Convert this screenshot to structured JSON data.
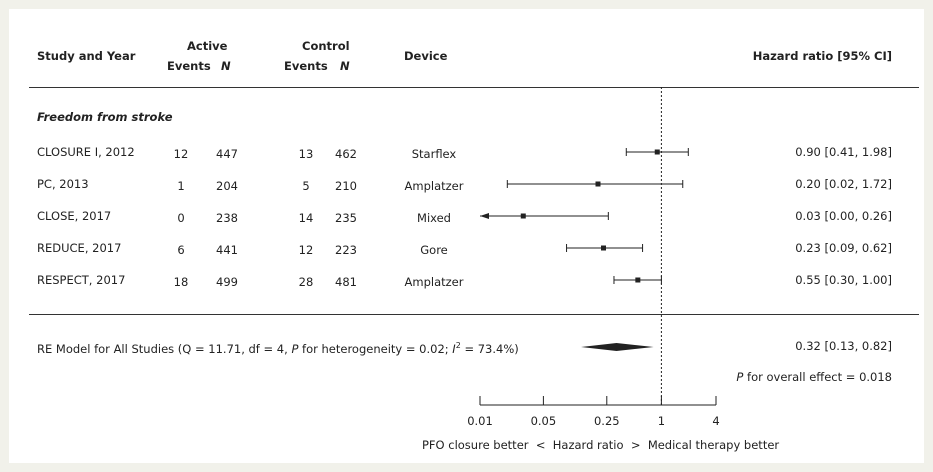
{
  "colors": {
    "page_bg": "#f1f1ea",
    "panel_bg": "#ffffff",
    "ink": "#222222"
  },
  "header": {
    "study_year": "Study and Year",
    "active": "Active",
    "control": "Control",
    "events": "Events",
    "n": "N",
    "device": "Device",
    "hazard_ratio_ci": "Hazard ratio [95% CI]"
  },
  "section_title": "Freedom from stroke",
  "summary": {
    "label_pre": "RE Model for All Studies (Q = 11.71, df = 4, ",
    "label_p": "P",
    "label_mid": " for heterogeneity = 0.02; ",
    "label_i": "I",
    "label_sup": "2",
    "label_post": " = 73.4%)",
    "overall_p_label": "P",
    "overall_p_text": " for overall effect = 0.018"
  },
  "axis": {
    "direction_left": "PFO closure better",
    "lt": "<",
    "axis_title": "Hazard ratio",
    "gt": ">",
    "direction_right": "Medical therapy better"
  },
  "chart_data": {
    "type": "forest",
    "x_scale": "log",
    "xlim": [
      0.01,
      4
    ],
    "x_ticks": [
      0.01,
      0.05,
      0.25,
      1,
      4
    ],
    "x_tick_labels": [
      "0.01",
      "0.05",
      "0.25",
      "1",
      "4"
    ],
    "reference_line": 1,
    "studies": [
      {
        "study": "CLOSURE I, 2012",
        "active_events": "12",
        "active_n": "447",
        "control_events": "13",
        "control_n": "462",
        "device": "Starflex",
        "hr": 0.9,
        "lo": 0.41,
        "hi": 1.98,
        "ci_text": "0.90 [0.41, 1.98]"
      },
      {
        "study": "PC, 2013",
        "active_events": "1",
        "active_n": "204",
        "control_events": "5",
        "control_n": "210",
        "device": "Amplatzer",
        "hr": 0.2,
        "lo": 0.02,
        "hi": 1.72,
        "ci_text": "0.20 [0.02, 1.72]"
      },
      {
        "study": "CLOSE, 2017",
        "active_events": "0",
        "active_n": "238",
        "control_events": "14",
        "control_n": "235",
        "device": "Mixed",
        "hr": 0.03,
        "lo": 0.0,
        "hi": 0.26,
        "ci_text": "0.03 [0.00, 0.26]"
      },
      {
        "study": "REDUCE, 2017",
        "active_events": "6",
        "active_n": "441",
        "control_events": "12",
        "control_n": "223",
        "device": "Gore",
        "hr": 0.23,
        "lo": 0.09,
        "hi": 0.62,
        "ci_text": "0.23 [0.09, 0.62]"
      },
      {
        "study": "RESPECT, 2017",
        "active_events": "18",
        "active_n": "499",
        "control_events": "28",
        "control_n": "481",
        "device": "Amplatzer",
        "hr": 0.55,
        "lo": 0.3,
        "hi": 1.0,
        "ci_text": "0.55 [0.30, 1.00]"
      }
    ],
    "pooled": {
      "hr": 0.32,
      "lo": 0.13,
      "hi": 0.82,
      "ci_text": "0.32 [0.13, 0.82]"
    },
    "overall_p": "0.018"
  }
}
